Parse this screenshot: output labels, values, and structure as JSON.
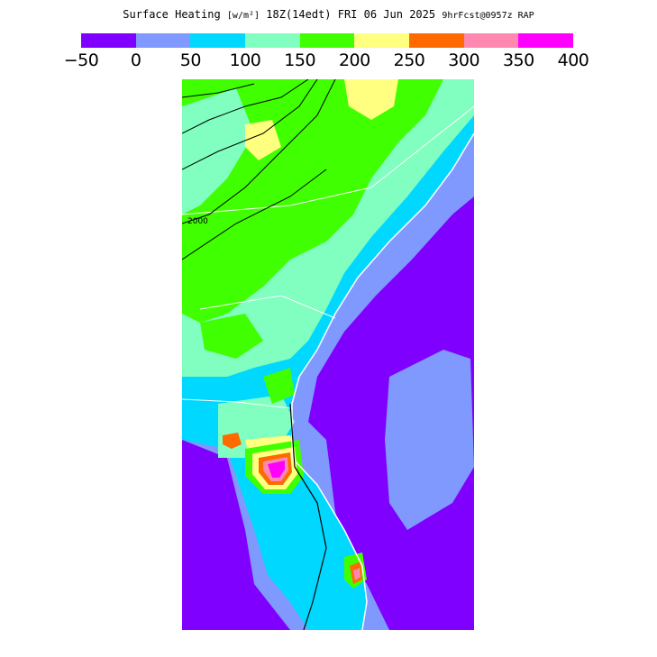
{
  "header": {
    "title": "Surface Heating",
    "units": "[w/m²]",
    "valid": "18Z(14edt) FRI 06 Jun 2025",
    "forecast": "9hrFcst@0957z RAP"
  },
  "legend": {
    "ticks": [
      "−50",
      "0",
      "50",
      "100",
      "150",
      "200",
      "250",
      "300",
      "350",
      "400"
    ],
    "colors": [
      "#8000ff",
      "#8099ff",
      "#00d8ff",
      "#80ffc0",
      "#40ff00",
      "#ffff80",
      "#ff6a00",
      "#ff88b0",
      "#ff00ff"
    ]
  },
  "map": {
    "contour_label": "2000"
  }
}
